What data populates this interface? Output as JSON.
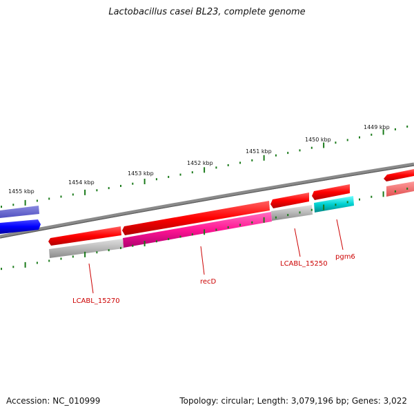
{
  "map": {
    "title": "Lactobacillus casei BL23, complete genome",
    "accession": "Accession: NC_010999",
    "summary": "Topology: circular; Length: 3,079,196 bp; Genes: 3,022"
  },
  "scale_labels": [
    "1455 kbp",
    "1454 kbp",
    "1453 kbp",
    "1452 kbp",
    "1451 kbp",
    "1450 kbp",
    "1449 kbp"
  ],
  "gene_labels": {
    "lcabl_15270": "LCABL_15270",
    "recd": "recD",
    "lcabl_15250": "LCABL_15250",
    "pgm6": "pgm6"
  },
  "colors": {
    "backbone": "#808080",
    "tick": "#1a7a1a",
    "forward_gene": "#ff0000",
    "reverse_gene_left": "#0000ff",
    "cds_grey": "#b8b8b8",
    "cds_magenta": "#ff1493",
    "cds_cyan": "#00cccc",
    "label": "#cc0000"
  }
}
